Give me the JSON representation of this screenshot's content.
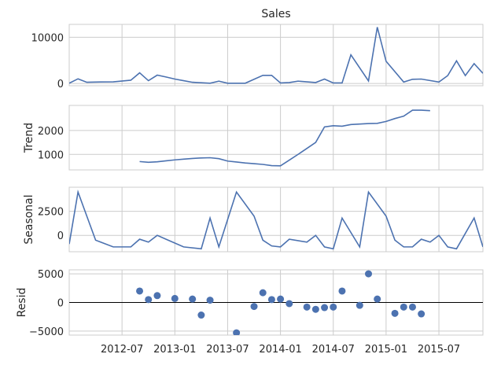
{
  "chart_data": [
    {
      "type": "line",
      "title": "Sales",
      "ylabel": "",
      "yticks": [
        {
          "value": 0,
          "label": "0"
        },
        {
          "value": 10000,
          "label": "10000"
        }
      ],
      "ylim": [
        -500,
        12800
      ],
      "grid": true,
      "series": [
        {
          "color": "#4c72b0",
          "points": [
            [
              "2012-01",
              50
            ],
            [
              "2012-02",
              1000
            ],
            [
              "2012-03",
              250
            ],
            [
              "2012-04",
              300
            ],
            [
              "2012-06",
              350
            ],
            [
              "2012-08",
              700
            ],
            [
              "2012-09",
              2300
            ],
            [
              "2012-10",
              600
            ],
            [
              "2012-11",
              1800
            ],
            [
              "2012-12",
              1400
            ],
            [
              "2013-01",
              950
            ],
            [
              "2013-02",
              600
            ],
            [
              "2013-03",
              250
            ],
            [
              "2013-04",
              150
            ],
            [
              "2013-05",
              50
            ],
            [
              "2013-06",
              500
            ],
            [
              "2013-07",
              50
            ],
            [
              "2013-09",
              50
            ],
            [
              "2013-11",
              1750
            ],
            [
              "2013-12",
              1750
            ],
            [
              "2014-01",
              100
            ],
            [
              "2014-02",
              200
            ],
            [
              "2014-03",
              500
            ],
            [
              "2014-05",
              200
            ],
            [
              "2014-06",
              950
            ],
            [
              "2014-07",
              100
            ],
            [
              "2014-08",
              100
            ],
            [
              "2014-09",
              6200
            ],
            [
              "2014-11",
              550
            ],
            [
              "2014-12",
              12200
            ],
            [
              "2015-01",
              4800
            ],
            [
              "2015-03",
              300
            ],
            [
              "2015-04",
              900
            ],
            [
              "2015-05",
              950
            ],
            [
              "2015-07",
              300
            ],
            [
              "2015-08",
              1700
            ],
            [
              "2015-09",
              4900
            ],
            [
              "2015-10",
              1700
            ],
            [
              "2015-11",
              4300
            ],
            [
              "2015-12",
              2200
            ]
          ]
        }
      ]
    },
    {
      "type": "line",
      "title": "",
      "ylabel": "Trend",
      "yticks": [
        {
          "value": 1000,
          "label": "1000"
        },
        {
          "value": 2000,
          "label": "2000"
        }
      ],
      "ylim": [
        350,
        3050
      ],
      "grid": true,
      "series": [
        {
          "color": "#4c72b0",
          "points": [
            [
              "2012-09",
              700
            ],
            [
              "2012-10",
              670
            ],
            [
              "2012-11",
              690
            ],
            [
              "2012-12",
              730
            ],
            [
              "2013-01",
              770
            ],
            [
              "2013-02",
              800
            ],
            [
              "2013-03",
              830
            ],
            [
              "2013-04",
              850
            ],
            [
              "2013-05",
              860
            ],
            [
              "2013-06",
              820
            ],
            [
              "2013-07",
              720
            ],
            [
              "2013-08",
              680
            ],
            [
              "2013-09",
              640
            ],
            [
              "2013-10",
              610
            ],
            [
              "2013-11",
              580
            ],
            [
              "2013-12",
              530
            ],
            [
              "2014-01",
              520
            ],
            [
              "2014-02",
              760
            ],
            [
              "2014-03",
              1000
            ],
            [
              "2014-04",
              1250
            ],
            [
              "2014-05",
              1500
            ],
            [
              "2014-06",
              2150
            ],
            [
              "2014-07",
              2200
            ],
            [
              "2014-08",
              2180
            ],
            [
              "2014-09",
              2250
            ],
            [
              "2014-10",
              2270
            ],
            [
              "2014-11",
              2290
            ],
            [
              "2014-12",
              2300
            ],
            [
              "2015-01",
              2380
            ],
            [
              "2015-02",
              2500
            ],
            [
              "2015-03",
              2600
            ],
            [
              "2015-04",
              2850
            ],
            [
              "2015-05",
              2850
            ],
            [
              "2015-06",
              2830
            ]
          ]
        }
      ]
    },
    {
      "type": "line",
      "title": "",
      "ylabel": "Seasonal",
      "yticks": [
        {
          "value": 0,
          "label": "0"
        },
        {
          "value": 2500,
          "label": "2500"
        }
      ],
      "ylim": [
        -1700,
        5000
      ],
      "grid": true,
      "series": [
        {
          "color": "#4c72b0",
          "points": [
            [
              "2012-01",
              -900
            ],
            [
              "2012-02",
              4500
            ],
            [
              "2012-03",
              2000
            ],
            [
              "2012-04",
              -500
            ],
            [
              "2012-06",
              -1200
            ],
            [
              "2012-08",
              -1200
            ],
            [
              "2012-09",
              -400
            ],
            [
              "2012-10",
              -700
            ],
            [
              "2012-11",
              0
            ],
            [
              "2012-12",
              -400
            ],
            [
              "2013-02",
              -1200
            ],
            [
              "2013-04",
              -1400
            ],
            [
              "2013-05",
              1800
            ],
            [
              "2013-06",
              -1200
            ],
            [
              "2013-08",
              4500
            ],
            [
              "2013-10",
              2000
            ],
            [
              "2013-11",
              -500
            ],
            [
              "2013-12",
              -1100
            ],
            [
              "2014-01",
              -1200
            ],
            [
              "2014-02",
              -400
            ],
            [
              "2014-04",
              -700
            ],
            [
              "2014-05",
              0
            ],
            [
              "2014-06",
              -1200
            ],
            [
              "2014-07",
              -1400
            ],
            [
              "2014-08",
              1800
            ],
            [
              "2014-10",
              -1200
            ],
            [
              "2014-11",
              4500
            ],
            [
              "2015-01",
              2000
            ],
            [
              "2015-02",
              -500
            ],
            [
              "2015-03",
              -1200
            ],
            [
              "2015-04",
              -1200
            ],
            [
              "2015-05",
              -400
            ],
            [
              "2015-06",
              -700
            ],
            [
              "2015-07",
              0
            ],
            [
              "2015-08",
              -1200
            ],
            [
              "2015-09",
              -1400
            ],
            [
              "2015-11",
              1800
            ],
            [
              "2015-12",
              -1200
            ]
          ]
        }
      ]
    },
    {
      "type": "scatter",
      "title": "",
      "ylabel": "Resid",
      "xlabel": "",
      "yticks": [
        {
          "value": -5000,
          "label": "−5000"
        },
        {
          "value": 0,
          "label": "0"
        },
        {
          "value": 5000,
          "label": "5000"
        }
      ],
      "ylim": [
        -5700,
        5700
      ],
      "zero_line": true,
      "grid": true,
      "xticks": [
        "2012-07",
        "2013-01",
        "2013-07",
        "2014-01",
        "2014-07",
        "2015-01",
        "2015-07"
      ],
      "series": [
        {
          "color": "#4c72b0",
          "points": [
            [
              "2012-09",
              2000
            ],
            [
              "2012-10",
              500
            ],
            [
              "2012-11",
              1200
            ],
            [
              "2013-01",
              700
            ],
            [
              "2013-03",
              600
            ],
            [
              "2013-04",
              -2200
            ],
            [
              "2013-05",
              400
            ],
            [
              "2013-08",
              -5300
            ],
            [
              "2013-10",
              -700
            ],
            [
              "2013-11",
              1700
            ],
            [
              "2013-12",
              500
            ],
            [
              "2014-01",
              600
            ],
            [
              "2014-02",
              -200
            ],
            [
              "2014-04",
              -800
            ],
            [
              "2014-05",
              -1200
            ],
            [
              "2014-06",
              -900
            ],
            [
              "2014-07",
              -800
            ],
            [
              "2014-08",
              2000
            ],
            [
              "2014-10",
              -500
            ],
            [
              "2014-11",
              5000
            ],
            [
              "2014-12",
              600
            ],
            [
              "2015-02",
              -1900
            ],
            [
              "2015-03",
              -800
            ],
            [
              "2015-04",
              -800
            ],
            [
              "2015-05",
              -2000
            ]
          ]
        }
      ]
    }
  ]
}
